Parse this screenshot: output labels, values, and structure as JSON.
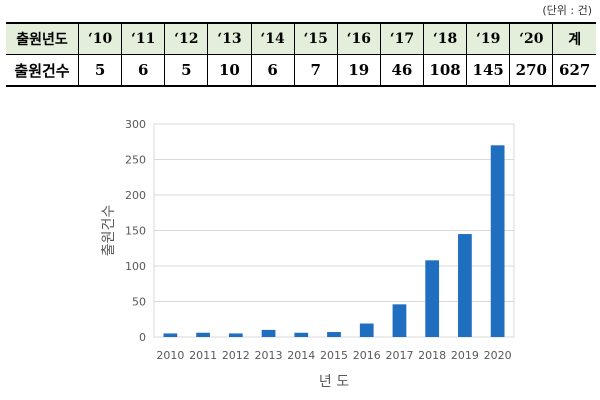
{
  "unit_note": "(단위 : 건)",
  "table": {
    "row1_label": "출원년도",
    "row2_label": "출원건수",
    "years": [
      "‘10",
      "‘11",
      "‘12",
      "‘13",
      "‘14",
      "‘15",
      "‘16",
      "‘17",
      "‘18",
      "‘19",
      "‘20",
      "계"
    ],
    "counts": [
      "5",
      "6",
      "5",
      "10",
      "6",
      "7",
      "19",
      "46",
      "108",
      "145",
      "270",
      "627"
    ]
  },
  "colors": {
    "bar": "#1f6ebf",
    "header_fill": "#e3efda",
    "grid": "#d9d9d9"
  },
  "chart_data": {
    "type": "bar",
    "categories": [
      "2010",
      "2011",
      "2012",
      "2013",
      "2014",
      "2015",
      "2016",
      "2017",
      "2018",
      "2019",
      "2020"
    ],
    "values": [
      5,
      6,
      5,
      10,
      6,
      7,
      19,
      46,
      108,
      145,
      270
    ],
    "xlabel": "년 도",
    "ylabel": "출원건수",
    "ylim": [
      0,
      300
    ],
    "yticks": [
      0,
      50,
      100,
      150,
      200,
      250,
      300
    ],
    "grid": true
  }
}
